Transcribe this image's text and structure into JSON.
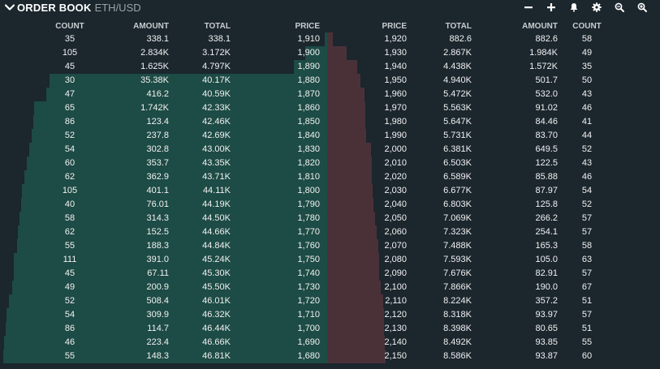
{
  "header": {
    "title": "ORDER BOOK",
    "pair": "ETH/USD",
    "tools": [
      {
        "icon": "minus-icon"
      },
      {
        "icon": "plus-icon"
      },
      {
        "icon": "bell-icon"
      },
      {
        "icon": "gear-icon"
      },
      {
        "icon": "zoom-out-icon"
      },
      {
        "icon": "zoom-in-icon"
      }
    ]
  },
  "colors": {
    "background": "#1b262d",
    "bid_depth": "#1d4b45",
    "ask_depth": "#4a3138",
    "text": "#f2f2f2"
  },
  "bids": {
    "columns": {
      "count": "COUNT",
      "amount": "AMOUNT",
      "total": "TOTAL",
      "price": "PRICE"
    },
    "max_depth_total": 46.81,
    "rows": [
      {
        "count": "35",
        "amount": "338.1",
        "total": "338.1",
        "price": "1,910",
        "depth": 0.338
      },
      {
        "count": "105",
        "amount": "2.834K",
        "total": "3.172K",
        "price": "1,900",
        "depth": 3.172
      },
      {
        "count": "45",
        "amount": "1.625K",
        "total": "4.797K",
        "price": "1,890",
        "depth": 4.797
      },
      {
        "count": "30",
        "amount": "35.38K",
        "total": "40.17K",
        "price": "1,880",
        "depth": 40.17
      },
      {
        "count": "47",
        "amount": "416.2",
        "total": "40.59K",
        "price": "1,870",
        "depth": 40.59
      },
      {
        "count": "65",
        "amount": "1.742K",
        "total": "42.33K",
        "price": "1,860",
        "depth": 42.33
      },
      {
        "count": "86",
        "amount": "123.4",
        "total": "42.46K",
        "price": "1,850",
        "depth": 42.46
      },
      {
        "count": "52",
        "amount": "237.8",
        "total": "42.69K",
        "price": "1,840",
        "depth": 42.69
      },
      {
        "count": "54",
        "amount": "302.8",
        "total": "43.00K",
        "price": "1,830",
        "depth": 43.0
      },
      {
        "count": "60",
        "amount": "353.7",
        "total": "43.35K",
        "price": "1,820",
        "depth": 43.35
      },
      {
        "count": "62",
        "amount": "362.9",
        "total": "43.71K",
        "price": "1,810",
        "depth": 43.71
      },
      {
        "count": "105",
        "amount": "401.1",
        "total": "44.11K",
        "price": "1,800",
        "depth": 44.11
      },
      {
        "count": "40",
        "amount": "76.01",
        "total": "44.19K",
        "price": "1,790",
        "depth": 44.19
      },
      {
        "count": "58",
        "amount": "314.3",
        "total": "44.50K",
        "price": "1,780",
        "depth": 44.5
      },
      {
        "count": "62",
        "amount": "152.5",
        "total": "44.66K",
        "price": "1,770",
        "depth": 44.66
      },
      {
        "count": "55",
        "amount": "188.3",
        "total": "44.84K",
        "price": "1,760",
        "depth": 44.84
      },
      {
        "count": "111",
        "amount": "391.0",
        "total": "45.24K",
        "price": "1,750",
        "depth": 45.24
      },
      {
        "count": "45",
        "amount": "67.11",
        "total": "45.30K",
        "price": "1,740",
        "depth": 45.3
      },
      {
        "count": "49",
        "amount": "200.9",
        "total": "45.50K",
        "price": "1,730",
        "depth": 45.5
      },
      {
        "count": "52",
        "amount": "508.4",
        "total": "46.01K",
        "price": "1,720",
        "depth": 46.01
      },
      {
        "count": "54",
        "amount": "309.9",
        "total": "46.32K",
        "price": "1,710",
        "depth": 46.32
      },
      {
        "count": "86",
        "amount": "114.7",
        "total": "46.44K",
        "price": "1,700",
        "depth": 46.44
      },
      {
        "count": "46",
        "amount": "223.4",
        "total": "46.66K",
        "price": "1,690",
        "depth": 46.66
      },
      {
        "count": "55",
        "amount": "148.3",
        "total": "46.81K",
        "price": "1,680",
        "depth": 46.81
      }
    ]
  },
  "asks": {
    "columns": {
      "price": "PRICE",
      "total": "TOTAL",
      "amount": "AMOUNT",
      "count": "COUNT"
    },
    "max_depth_total": 8.586,
    "rows": [
      {
        "price": "1,920",
        "total": "882.6",
        "amount": "882.6",
        "count": "58",
        "depth": 0.883
      },
      {
        "price": "1,930",
        "total": "2.867K",
        "amount": "1.984K",
        "count": "49",
        "depth": 2.867
      },
      {
        "price": "1,940",
        "total": "4.438K",
        "amount": "1.572K",
        "count": "35",
        "depth": 4.438
      },
      {
        "price": "1,950",
        "total": "4.940K",
        "amount": "501.7",
        "count": "50",
        "depth": 4.94
      },
      {
        "price": "1,960",
        "total": "5.472K",
        "amount": "532.0",
        "count": "43",
        "depth": 5.472
      },
      {
        "price": "1,970",
        "total": "5.563K",
        "amount": "91.02",
        "count": "46",
        "depth": 5.563
      },
      {
        "price": "1,980",
        "total": "5.647K",
        "amount": "84.46",
        "count": "41",
        "depth": 5.647
      },
      {
        "price": "1,990",
        "total": "5.731K",
        "amount": "83.70",
        "count": "44",
        "depth": 5.731
      },
      {
        "price": "2,000",
        "total": "6.381K",
        "amount": "649.5",
        "count": "52",
        "depth": 6.381
      },
      {
        "price": "2,010",
        "total": "6.503K",
        "amount": "122.5",
        "count": "43",
        "depth": 6.503
      },
      {
        "price": "2,020",
        "total": "6.589K",
        "amount": "85.88",
        "count": "46",
        "depth": 6.589
      },
      {
        "price": "2,030",
        "total": "6.677K",
        "amount": "87.97",
        "count": "54",
        "depth": 6.677
      },
      {
        "price": "2,040",
        "total": "6.803K",
        "amount": "125.8",
        "count": "52",
        "depth": 6.803
      },
      {
        "price": "2,050",
        "total": "7.069K",
        "amount": "266.2",
        "count": "57",
        "depth": 7.069
      },
      {
        "price": "2,060",
        "total": "7.323K",
        "amount": "254.1",
        "count": "57",
        "depth": 7.323
      },
      {
        "price": "2,070",
        "total": "7.488K",
        "amount": "165.3",
        "count": "58",
        "depth": 7.488
      },
      {
        "price": "2,080",
        "total": "7.593K",
        "amount": "105.0",
        "count": "63",
        "depth": 7.593
      },
      {
        "price": "2,090",
        "total": "7.676K",
        "amount": "82.91",
        "count": "57",
        "depth": 7.676
      },
      {
        "price": "2,100",
        "total": "7.866K",
        "amount": "190.0",
        "count": "67",
        "depth": 7.866
      },
      {
        "price": "2,110",
        "total": "8.224K",
        "amount": "357.2",
        "count": "51",
        "depth": 8.224
      },
      {
        "price": "2,120",
        "total": "8.318K",
        "amount": "93.97",
        "count": "57",
        "depth": 8.318
      },
      {
        "price": "2,130",
        "total": "8.398K",
        "amount": "80.65",
        "count": "51",
        "depth": 8.398
      },
      {
        "price": "2,140",
        "total": "8.492K",
        "amount": "93.85",
        "count": "55",
        "depth": 8.492
      },
      {
        "price": "2,150",
        "total": "8.586K",
        "amount": "93.87",
        "count": "60",
        "depth": 8.586
      }
    ]
  }
}
